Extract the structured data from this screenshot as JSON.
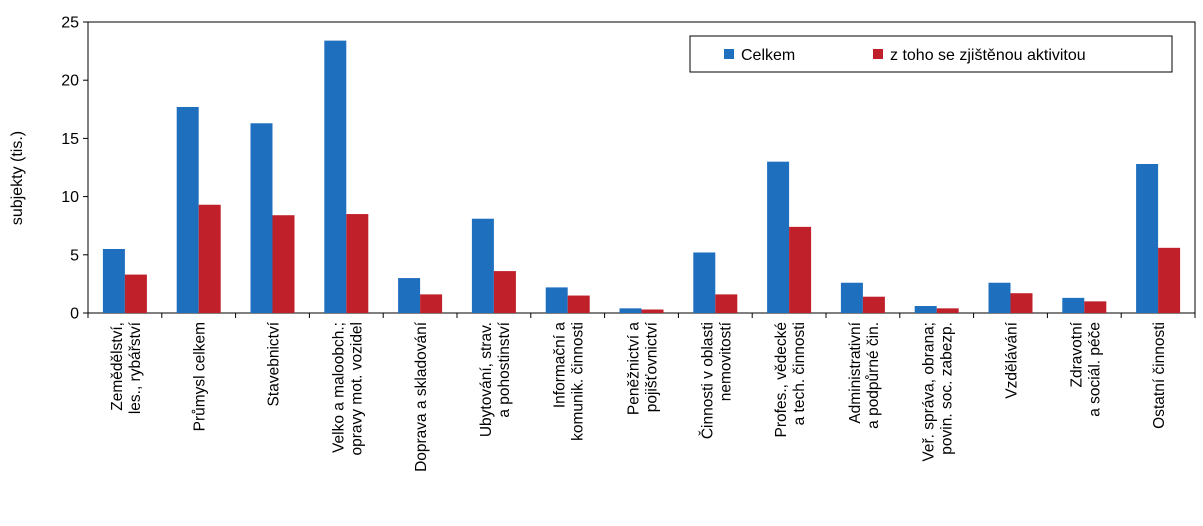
{
  "chart_data": {
    "type": "bar",
    "ylabel": "subjekty (tis.)",
    "ylim": [
      0,
      25
    ],
    "yticks": [
      "0",
      "5",
      "10",
      "15",
      "20",
      "25"
    ],
    "yticks_values": [
      0,
      5,
      10,
      15,
      20,
      25
    ],
    "grid": false,
    "legend_position": "top-right",
    "categories": [
      [
        "Zemědělství,",
        "les., rybářství"
      ],
      [
        "Průmysl celkem"
      ],
      [
        "Stavebnictví"
      ],
      [
        "Velko a maloobch.;",
        "opravy mot. vozidel"
      ],
      [
        "Doprava a skladování"
      ],
      [
        "Ubytování, strav.",
        "a pohostinství"
      ],
      [
        "Informační a",
        "komunik. činnosti"
      ],
      [
        "Peněžnictví a",
        "pojišťovnictví"
      ],
      [
        "Činnosti v oblasti",
        "nemovitostí"
      ],
      [
        "Profes., vědecké",
        "a tech. činnosti"
      ],
      [
        "Administrativní",
        "a podpůrné čin."
      ],
      [
        "Veř. správa, obrana;",
        "povin. soc. zabezp."
      ],
      [
        "Vzdělávání"
      ],
      [
        "Zdravotní",
        "a sociál. péče"
      ],
      [
        "Ostatní činnosti"
      ]
    ],
    "series": [
      {
        "name": "Celkem",
        "color": "#1f6fbf",
        "values": [
          5.5,
          17.7,
          16.3,
          23.4,
          3.0,
          8.1,
          2.2,
          0.4,
          5.2,
          13.0,
          2.6,
          0.6,
          2.6,
          1.3,
          12.8
        ]
      },
      {
        "name": "z toho se zjištěnou aktivitou",
        "color": "#c0202a",
        "values": [
          3.3,
          9.3,
          8.4,
          8.5,
          1.6,
          3.6,
          1.5,
          0.3,
          1.6,
          7.4,
          1.4,
          0.4,
          1.7,
          1.0,
          5.6
        ]
      }
    ]
  }
}
